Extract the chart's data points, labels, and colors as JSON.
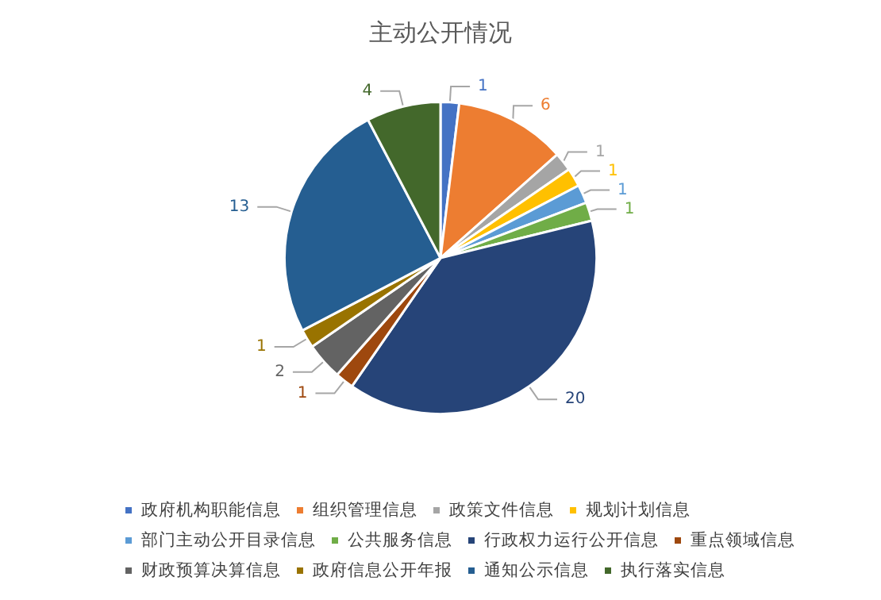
{
  "chart_data": {
    "type": "pie",
    "title": "主动公开情况",
    "categories": [
      "政府机构职能信息",
      "组织管理信息",
      "政策文件信息",
      "规划计划信息",
      "部门主动公开目录信息",
      "公共服务信息",
      "行政权力运行公开信息",
      "重点领域信息",
      "财政预算决算信息",
      "政府信息公开年报",
      "通知公示信息",
      "执行落实信息"
    ],
    "values": [
      1,
      6,
      1,
      1,
      1,
      1,
      20,
      1,
      2,
      1,
      13,
      4
    ],
    "colors": [
      "#4472c4",
      "#ed7d31",
      "#a5a5a5",
      "#ffc000",
      "#5b9bd5",
      "#70ad47",
      "#264478",
      "#9e480e",
      "#636363",
      "#997300",
      "#255e91",
      "#43682b"
    ],
    "data_labels": true,
    "legend": "bottom"
  }
}
